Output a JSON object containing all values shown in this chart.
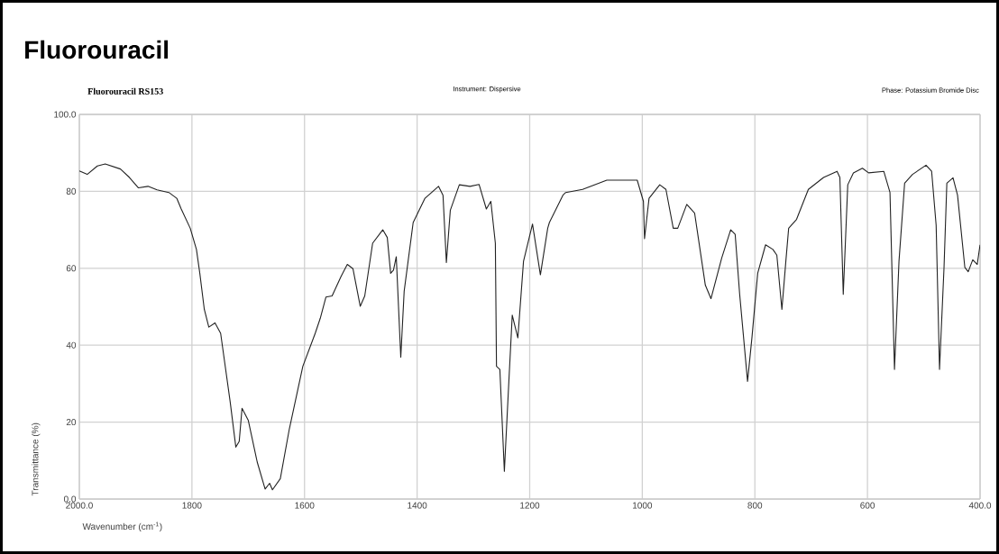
{
  "chart_data": {
    "type": "line",
    "title": "Fluorouracil",
    "subtitle": "**Fluorouracil RS153**",
    "annotations": [
      "Instrument:  Dispersive",
      "Phase:  Potassium Bromide Disc"
    ],
    "xlabel": "Wavenumber (cm$^{-1}$)",
    "ylabel": "Transmittance (%)",
    "xlim": [
      2000,
      400
    ],
    "ylim": [
      0,
      100
    ],
    "xticks": [
      {
        "value": 2000,
        "label": "2000.0"
      },
      1800,
      1600,
      1400,
      1200,
      1000,
      800,
      600,
      {
        "value": 400,
        "label": "400.0"
      }
    ],
    "yticks": [
      {
        "value": 0,
        "label": "0.0"
      },
      20,
      40,
      60,
      80,
      {
        "value": 100,
        "label": "100.0"
      }
    ],
    "grid": true,
    "series": [
      {
        "color": "#222222",
        "x": [
          2000,
          1986,
          1968,
          1954,
          1927,
          1911,
          1895,
          1878,
          1862,
          1841,
          1827,
          1819,
          1803,
          1792,
          1786,
          1778,
          1770,
          1759,
          1749,
          1732,
          1722,
          1716,
          1711,
          1700,
          1684,
          1670,
          1662,
          1657,
          1643,
          1627,
          1603,
          1581,
          1572,
          1562,
          1551,
          1535,
          1524,
          1514,
          1501,
          1493,
          1479,
          1461,
          1453,
          1447,
          1442,
          1437,
          1429,
          1423,
          1407,
          1386,
          1362,
          1354,
          1348,
          1341,
          1325,
          1306,
          1290,
          1277,
          1269,
          1261,
          1259,
          1253,
          1245,
          1237,
          1231,
          1221,
          1211,
          1195,
          1181,
          1168,
          1165,
          1141,
          1136,
          1106,
          1063,
          1009,
          998,
          996,
          988,
          969,
          958,
          945,
          937,
          921,
          907,
          888,
          878,
          859,
          843,
          835,
          827,
          813,
          805,
          795,
          781,
          768,
          761,
          752,
          745,
          740,
          726,
          705,
          678,
          654,
          649,
          643,
          635,
          625,
          609,
          598,
          571,
          560,
          552,
          544,
          534,
          520,
          496,
          486,
          478,
          472,
          464,
          459,
          448,
          440,
          427,
          421,
          413,
          405,
          400
        ],
        "values": [
          85.3,
          84.4,
          86.6,
          87.1,
          85.8,
          83.6,
          80.9,
          81.3,
          80.4,
          79.7,
          78.2,
          75.4,
          70.4,
          64.9,
          58.7,
          49.3,
          44.7,
          45.8,
          43.1,
          25.2,
          13.5,
          15.0,
          23.6,
          20.5,
          9.6,
          2.6,
          4.1,
          2.4,
          5.3,
          18.2,
          34.5,
          43.1,
          47.0,
          52.5,
          52.8,
          57.9,
          61.0,
          59.9,
          50.1,
          52.8,
          66.5,
          70.0,
          68.0,
          58.7,
          59.5,
          63.0,
          36.9,
          54.0,
          71.9,
          78.2,
          81.3,
          79.0,
          61.5,
          75.1,
          81.7,
          81.3,
          81.8,
          75.4,
          77.4,
          66.5,
          34.5,
          33.7,
          7.2,
          30.6,
          47.8,
          41.9,
          61.8,
          71.5,
          58.3,
          70.4,
          71.9,
          79.0,
          79.7,
          80.5,
          82.9,
          82.9,
          77.4,
          67.7,
          78.2,
          81.7,
          80.5,
          70.4,
          70.4,
          76.6,
          74.3,
          55.6,
          52.1,
          62.6,
          70.0,
          68.8,
          53.2,
          30.6,
          42.3,
          58.7,
          66.1,
          64.9,
          63.4,
          49.3,
          61.8,
          70.4,
          72.7,
          80.5,
          83.6,
          85.2,
          83.6,
          53.2,
          81.7,
          84.8,
          86.0,
          84.8,
          85.2,
          79.7,
          33.7,
          61.8,
          82.1,
          84.4,
          86.8,
          85.2,
          71.2,
          33.7,
          60.2,
          82.1,
          83.5,
          79.0,
          60.2,
          59.1,
          62.2,
          61.0,
          66.1
        ]
      }
    ]
  }
}
